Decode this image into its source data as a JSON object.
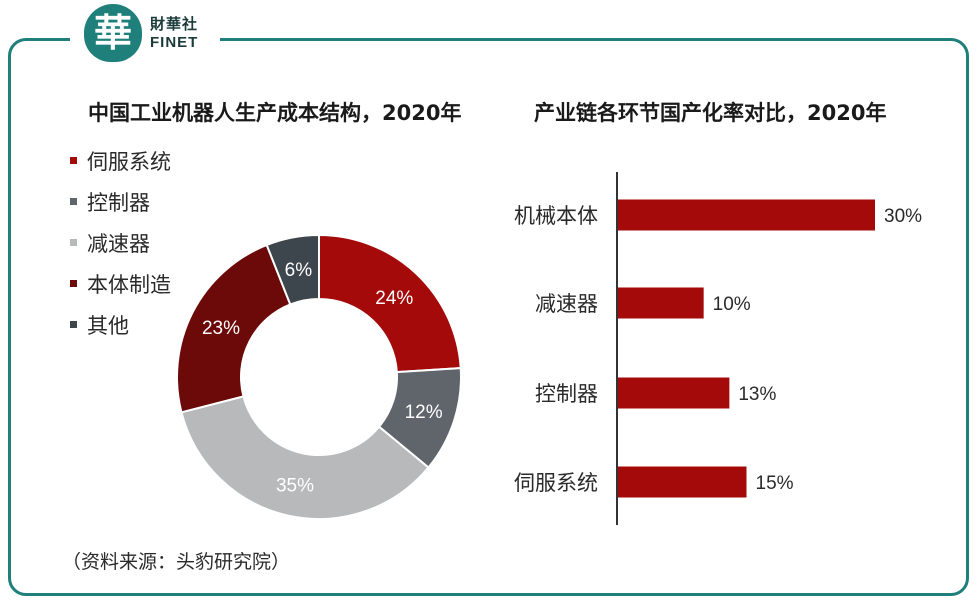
{
  "brand": {
    "seal_char": "華",
    "name_cn": "財華社",
    "name_en": "FINET"
  },
  "colors": {
    "frame": "#1f7f7a",
    "servo": "#a50a0a",
    "controller": "#5f656b",
    "reducer": "#b7b9bb",
    "body": "#6c0a0a",
    "other": "#3e464d",
    "bar": "#a50a0a"
  },
  "source_note": "（资料来源：头豹研究院）",
  "chart_data": [
    {
      "type": "pie",
      "variant": "donut",
      "title": "中国工业机器人生产成本结构，2020年",
      "legend_position": "top-left",
      "slices": [
        {
          "label": "伺服系统",
          "value": 24,
          "text": "24%",
          "color": "#a50a0a"
        },
        {
          "label": "控制器",
          "value": 12,
          "text": "12%",
          "color": "#5f656b"
        },
        {
          "label": "减速器",
          "value": 35,
          "text": "35%",
          "color": "#b7b9bb"
        },
        {
          "label": "本体制造",
          "value": 23,
          "text": "23%",
          "color": "#6c0a0a"
        },
        {
          "label": "其他",
          "value": 6,
          "text": "6%",
          "color": "#3e464d"
        }
      ]
    },
    {
      "type": "bar",
      "orientation": "horizontal",
      "title": "产业链各环节国产化率对比，2020年",
      "categories": [
        "机械本体",
        "减速器",
        "控制器",
        "伺服系统"
      ],
      "values": [
        30,
        10,
        13,
        15
      ],
      "value_labels": [
        "30%",
        "10%",
        "13%",
        "15%"
      ],
      "unit": "%",
      "xlim": [
        0,
        30
      ],
      "grid": false
    }
  ]
}
